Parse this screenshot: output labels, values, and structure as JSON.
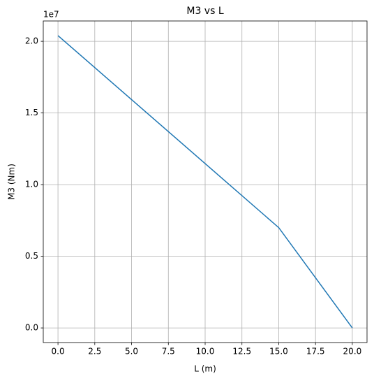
{
  "chart_data": {
    "type": "line",
    "title": "M3 vs L",
    "x_label": "L (m)",
    "y_label": "M3 (Nm)",
    "y_offset_label": "1e7",
    "x": [
      0,
      15,
      20
    ],
    "series": [
      {
        "name": "M3",
        "color": "#1f77b4",
        "values": [
          20400000,
          7000000,
          0
        ]
      }
    ],
    "xlim": [
      -1,
      21
    ],
    "xticks": [
      {
        "value": 0,
        "label": "0.0"
      },
      2.5,
      {
        "value": 5,
        "label": "5.0"
      },
      7.5,
      {
        "value": 10,
        "label": "10.0"
      },
      12.5,
      {
        "value": 15,
        "label": "15.0"
      },
      17.5,
      {
        "value": 20,
        "label": "20.0"
      }
    ],
    "ylim": [
      -1020000,
      21420000
    ],
    "yticks": [
      {
        "value": 0,
        "label": "0.0"
      },
      {
        "value": 5000000,
        "label": "0.5"
      },
      {
        "value": 10000000,
        "label": "1.0"
      },
      {
        "value": 15000000,
        "label": "1.5"
      },
      {
        "value": 20000000,
        "label": "2.0"
      }
    ],
    "grid": true
  }
}
